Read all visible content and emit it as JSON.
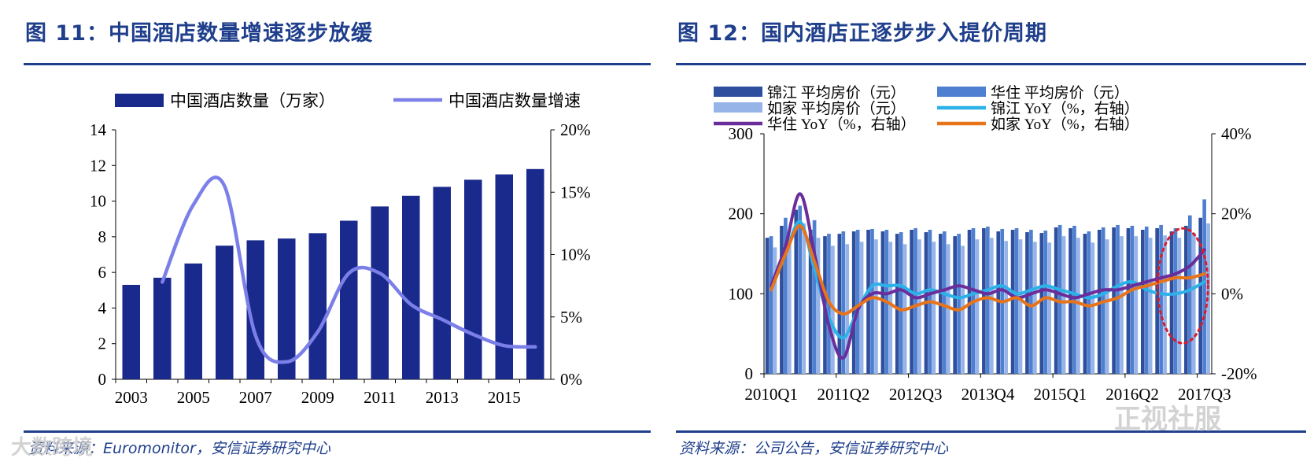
{
  "panel_left": {
    "title": "图 11：中国酒店数量增速逐步放缓",
    "source": "资料来源：Euromonitor，安信证券研究中心",
    "chart_data": {
      "type": "bar",
      "title": "图 11：中国酒店数量增速逐步放缓",
      "categories": [
        "2003",
        "2004",
        "2005",
        "2006",
        "2007",
        "2008",
        "2009",
        "2010",
        "2011",
        "2012",
        "2013",
        "2014",
        "2015",
        "2016"
      ],
      "x_tick_labels": [
        "2003",
        "2005",
        "2007",
        "2009",
        "2011",
        "2013",
        "2015"
      ],
      "y_left": {
        "min": 0,
        "max": 14,
        "ticks": [
          "0",
          "2",
          "4",
          "6",
          "8",
          "10",
          "12",
          "14"
        ]
      },
      "y_right": {
        "min": 0,
        "max": 20,
        "ticks": [
          "0%",
          "5%",
          "10%",
          "15%",
          "20%"
        ]
      },
      "series": [
        {
          "name": "中国酒店数量（万家）",
          "type": "bar",
          "axis": "left",
          "color": "#1a2a8c",
          "values": [
            5.3,
            5.7,
            6.5,
            7.5,
            7.8,
            7.9,
            8.2,
            8.9,
            9.7,
            10.3,
            10.8,
            11.2,
            11.5,
            11.8
          ]
        },
        {
          "name": "中国酒店数量增速",
          "type": "line",
          "axis": "right",
          "color": "#7b7fe8",
          "values": [
            null,
            7.8,
            14.0,
            15.5,
            3.5,
            1.4,
            3.8,
            8.5,
            8.5,
            6.0,
            4.8,
            3.6,
            2.7,
            2.6
          ]
        }
      ]
    }
  },
  "panel_right": {
    "title": "图 12：国内酒店正逐步步入提价周期",
    "source": "资料来源：公司公告，安信证券研究中心",
    "chart_data": {
      "type": "bar",
      "title": "图 12：国内酒店正逐步步入提价周期",
      "categories": [
        "2010Q1",
        "2010Q2",
        "2010Q3",
        "2010Q4",
        "2011Q1",
        "2011Q2",
        "2011Q3",
        "2011Q4",
        "2012Q1",
        "2012Q2",
        "2012Q3",
        "2012Q4",
        "2013Q1",
        "2013Q2",
        "2013Q3",
        "2013Q4",
        "2014Q1",
        "2014Q2",
        "2014Q3",
        "2014Q4",
        "2015Q1",
        "2015Q2",
        "2015Q3",
        "2015Q4",
        "2016Q1",
        "2016Q2",
        "2016Q3",
        "2016Q4",
        "2017Q1",
        "2017Q2",
        "2017Q3"
      ],
      "x_tick_labels": [
        "2010Q1",
        "2011Q2",
        "2012Q3",
        "2013Q4",
        "2015Q1",
        "2016Q2",
        "2017Q3"
      ],
      "y_left": {
        "min": 0,
        "max": 300,
        "ticks": [
          "0",
          "100",
          "200",
          "300"
        ]
      },
      "y_right": {
        "min": -20,
        "max": 40,
        "ticks": [
          "-20%",
          "0%",
          "20%",
          "40%"
        ]
      },
      "series": [
        {
          "name": "锦江 平均房价（元）",
          "type": "bar",
          "axis": "left",
          "color": "#2e4f9e",
          "values": [
            170,
            185,
            205,
            180,
            172,
            175,
            178,
            180,
            178,
            175,
            180,
            177,
            175,
            172,
            180,
            182,
            178,
            180,
            177,
            176,
            183,
            182,
            175,
            180,
            183,
            182,
            180,
            182,
            178,
            185,
            195
          ]
        },
        {
          "name": "华住 平均房价（元）",
          "type": "bar",
          "axis": "left",
          "color": "#4f7fd0",
          "values": [
            172,
            195,
            210,
            192,
            175,
            178,
            180,
            181,
            180,
            177,
            182,
            180,
            178,
            175,
            182,
            184,
            181,
            182,
            180,
            179,
            186,
            185,
            178,
            183,
            186,
            185,
            184,
            186,
            182,
            198,
            218
          ]
        },
        {
          "name": "如家 平均房价（元）",
          "type": "bar",
          "axis": "left",
          "color": "#97b4e8",
          "values": [
            158,
            172,
            188,
            170,
            160,
            162,
            165,
            168,
            165,
            162,
            168,
            165,
            162,
            160,
            168,
            170,
            166,
            168,
            165,
            164,
            172,
            170,
            164,
            168,
            172,
            172,
            170,
            173,
            170,
            176,
            188
          ]
        },
        {
          "name": "锦江 YoY（%，右轴）",
          "type": "line",
          "axis": "right",
          "color": "#2cb1e8",
          "values": [
            1,
            10,
            18,
            6,
            -6,
            -11,
            -4,
            2,
            2,
            2,
            0,
            1,
            0,
            -1,
            0,
            1,
            2,
            0,
            1,
            2,
            1,
            0,
            -1,
            0,
            2,
            3,
            1,
            0,
            0,
            1,
            3
          ]
        },
        {
          "name": "华住 YoY（%，右轴）",
          "type": "line",
          "axis": "right",
          "color": "#6a2d9a",
          "values": [
            2,
            12,
            25,
            10,
            -8,
            -16,
            -4,
            0,
            0,
            1,
            -1,
            0,
            1,
            2,
            1,
            0,
            1,
            -1,
            0,
            1,
            0,
            -1,
            0,
            1,
            1,
            2,
            3,
            4,
            5,
            7,
            11
          ]
        },
        {
          "name": "如家 YoY（%，右轴）",
          "type": "line",
          "axis": "right",
          "color": "#e8741a",
          "values": [
            1,
            10,
            17,
            8,
            -2,
            -5,
            -3,
            -1,
            -2,
            -4,
            -3,
            -2,
            -3,
            -4,
            -2,
            -1,
            -2,
            -1,
            -3,
            -1,
            -2,
            -2,
            -3,
            -2,
            -1,
            1,
            2,
            3,
            4,
            4,
            5
          ]
        }
      ]
    }
  },
  "watermarks": {
    "left": "大数跨境",
    "right": "正视社服"
  }
}
